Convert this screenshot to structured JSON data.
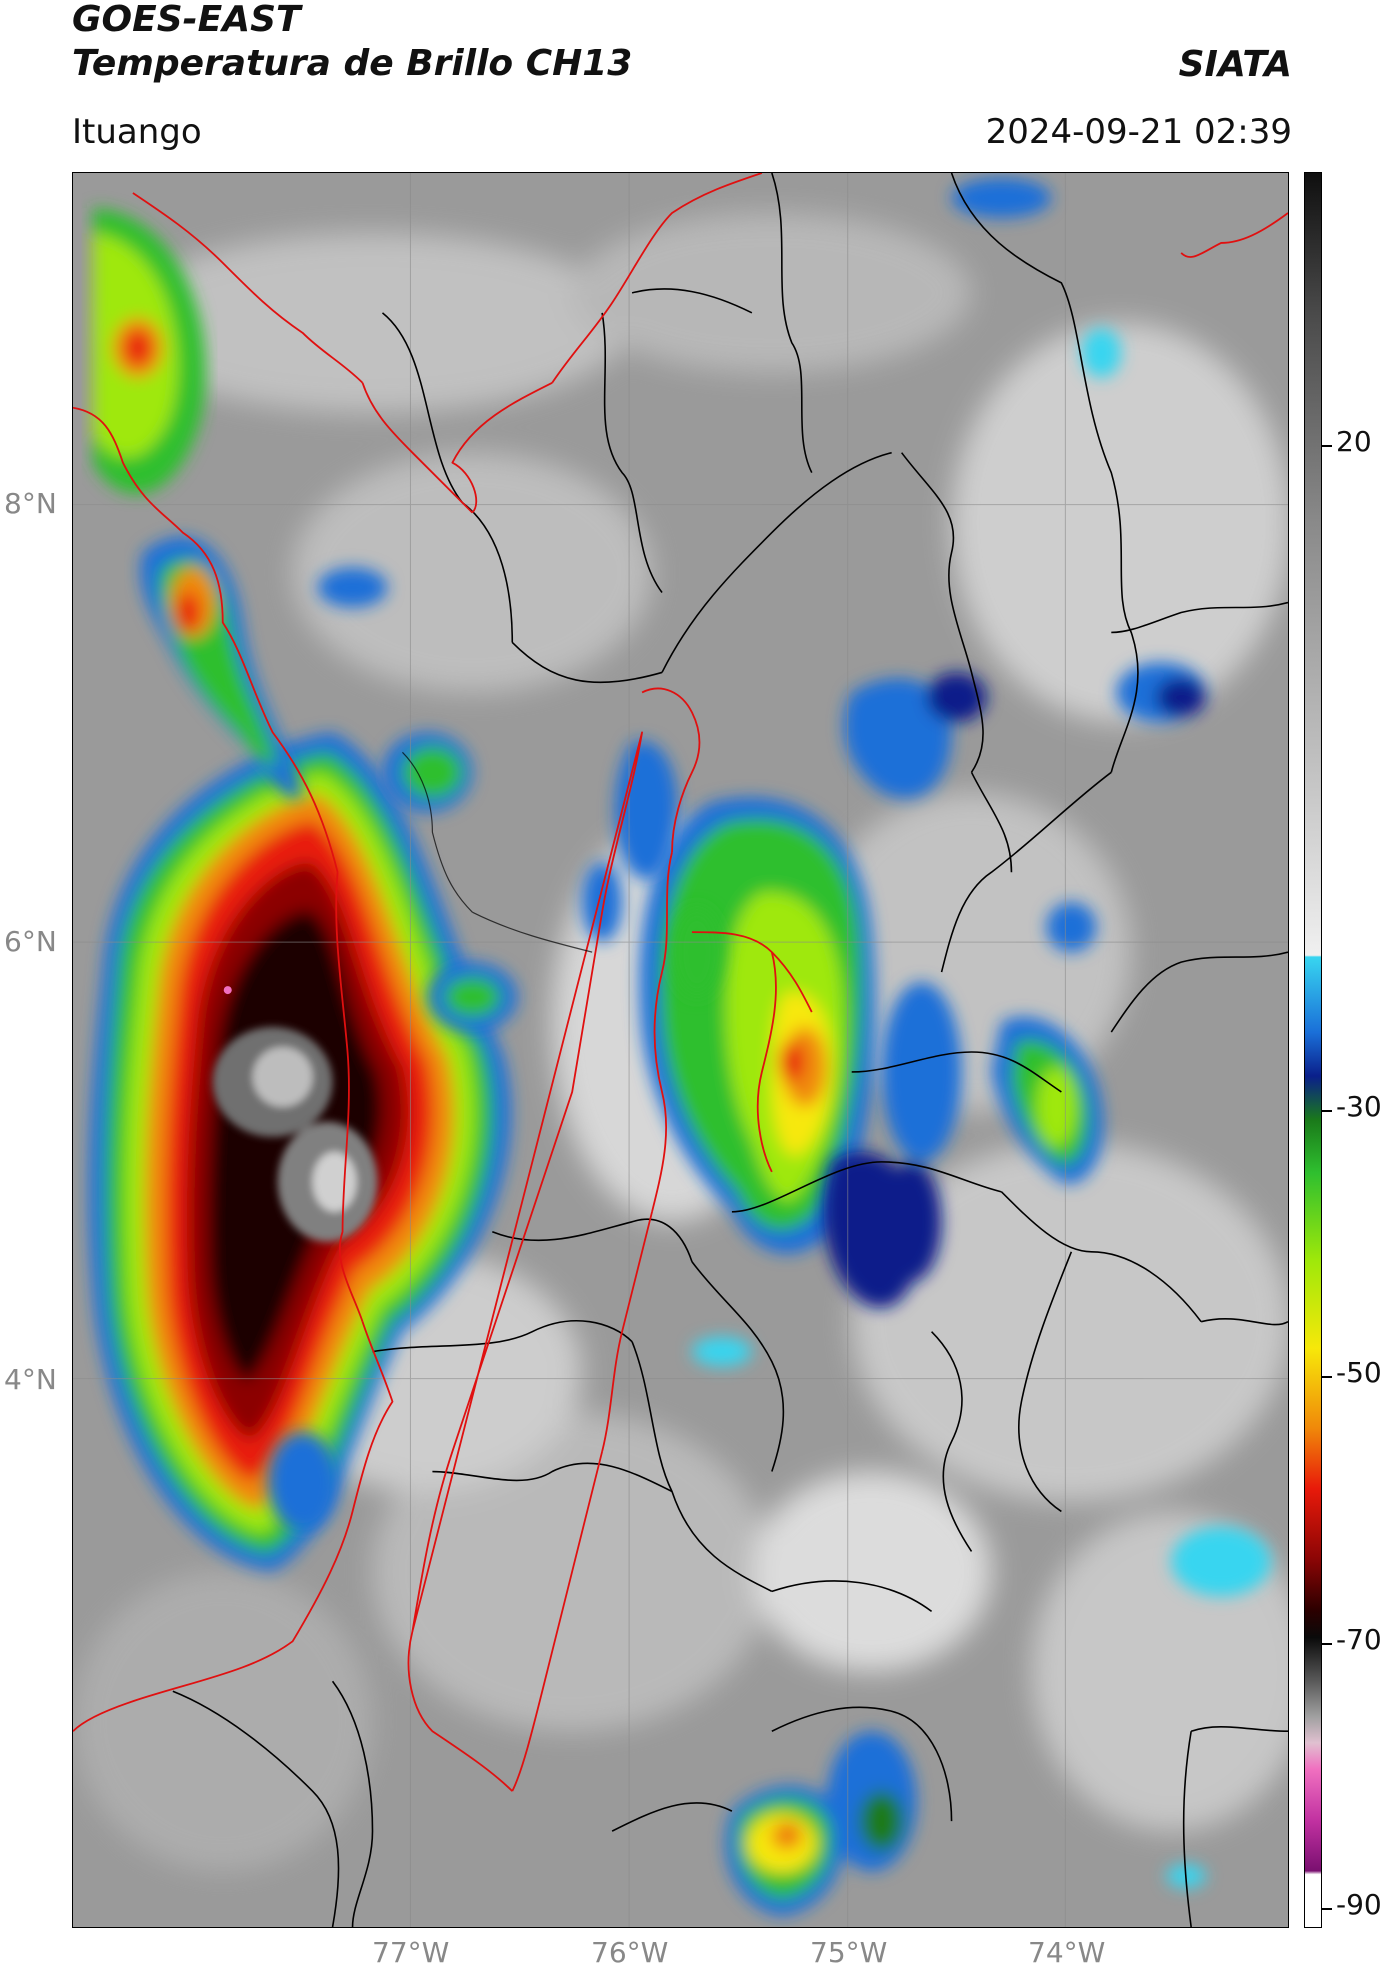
{
  "header": {
    "satellite": "GOES-EAST",
    "product": "Temperatura de Brillo CH13",
    "brand": "SIATA",
    "location": "Ituango",
    "timestamp": "2024-09-21 02:39"
  },
  "axes": {
    "lat_labels": [
      "8°N",
      "6°N",
      "4°N"
    ],
    "lon_labels": [
      "77°W",
      "76°W",
      "75°W",
      "74°W"
    ]
  },
  "colorbar": {
    "labels": [
      "20",
      "-30",
      "-50",
      "-70",
      "-90"
    ]
  },
  "icons": {
    "map": "satellite-imagery",
    "colorbar": "temperature-scale"
  }
}
